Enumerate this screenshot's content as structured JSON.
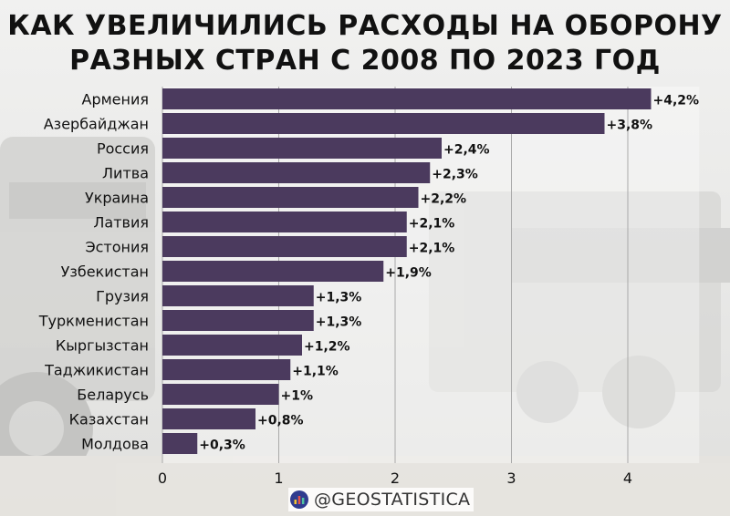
{
  "header": {
    "title_line1": "КАК УВЕЛИЧИЛИСЬ РАСХОДЫ НА ОБОРОНУ",
    "title_line2": "РАЗНЫХ СТРАН С 2008 ПО 2023 ГОД"
  },
  "footer": {
    "handle": "@GEOSTATISTICA",
    "logo_icon": "bar-chart-logo-icon"
  },
  "colors": {
    "bar": "#4b3a5e",
    "grid": "#a9a9a9",
    "text": "#111111",
    "label_bg": "#ffffff"
  },
  "chart_data": {
    "type": "bar",
    "orientation": "horizontal",
    "title": "КАК УВЕЛИЧИЛИСЬ РАСХОДЫ НА ОБОРОНУ РАЗНЫХ СТРАН С 2008 ПО 2023 ГОД",
    "categories": [
      "Армения",
      "Азербайджан",
      "Россия",
      "Литва",
      "Украина",
      "Латвия",
      "Эстония",
      "Узбекистан",
      "Грузия",
      "Туркменистан",
      "Кыргызстан",
      "Таджикистан",
      "Беларусь",
      "Казахстан",
      "Молдова"
    ],
    "values": [
      4.2,
      3.8,
      2.4,
      2.3,
      2.2,
      2.1,
      2.1,
      1.9,
      1.3,
      1.3,
      1.2,
      1.1,
      1.0,
      0.8,
      0.3
    ],
    "data_labels": [
      "+4,2%",
      "+3,8%",
      "+2,4%",
      "+2,3%",
      "+2,2%",
      "+2,1%",
      "+2,1%",
      "+1,9%",
      "+1,3%",
      "+1,3%",
      "+1,2%",
      "+1,1%",
      "+1%",
      "+0,8%",
      "+0,3%"
    ],
    "xlim": [
      0,
      4.3
    ],
    "xticks": [
      0,
      1,
      2,
      3,
      4
    ],
    "xtick_labels": [
      "0",
      "1",
      "2",
      "3",
      "4"
    ],
    "xlabel": "",
    "ylabel": "",
    "grid": true
  }
}
